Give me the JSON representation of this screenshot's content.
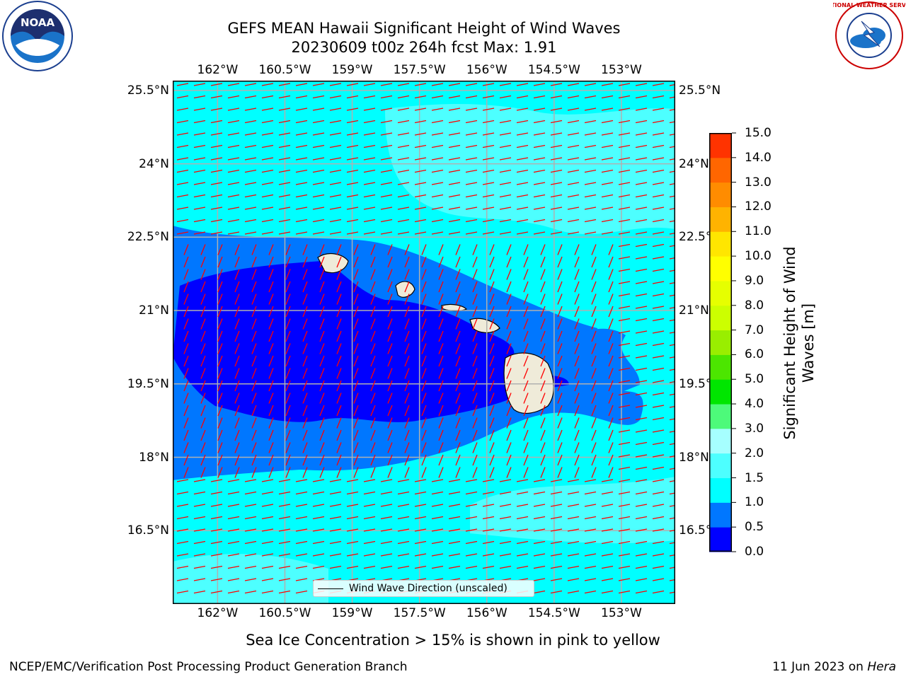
{
  "title": {
    "line1": "GEFS MEAN Hawaii Significant Height of Wind Waves",
    "line2": "20230609 t00z 264h fcst   Max: 1.91"
  },
  "map": {
    "lon_range": [
      -163.0,
      -151.8
    ],
    "lat_range": [
      15.0,
      25.7
    ],
    "lon_ticks": [
      "162°W",
      "160.5°W",
      "159°W",
      "157.5°W",
      "156°W",
      "154.5°W",
      "153°W"
    ],
    "lon_tick_values": [
      -162.0,
      -160.5,
      -159.0,
      -157.5,
      -156.0,
      -154.5,
      -153.0
    ],
    "lat_ticks": [
      "25.5°N",
      "24°N",
      "22.5°N",
      "21°N",
      "19.5°N",
      "18°N",
      "16.5°N"
    ],
    "lat_tick_values": [
      25.5,
      24.0,
      22.5,
      21.0,
      19.5,
      18.0,
      16.5
    ],
    "grid": true,
    "ocean_color": "#00ffff",
    "land_color": "#efebd9",
    "arrow_color": "#ff0000"
  },
  "legend": {
    "label": "Wind Wave Direction (unscaled)",
    "placement": "lower-center"
  },
  "colorbar": {
    "title": "Significant Height of Wind Waves [m]",
    "ticks": [
      "0.0",
      "0.5",
      "1.0",
      "1.5",
      "2.0",
      "3.0",
      "4.0",
      "5.0",
      "6.0",
      "7.0",
      "8.0",
      "9.0",
      "10.0",
      "11.0",
      "12.0",
      "13.0",
      "14.0",
      "15.0"
    ],
    "colors": [
      "#0000ff",
      "#0077ff",
      "#00ffff",
      "#4dffff",
      "#a6ffff",
      "#4dfa7a",
      "#00e600",
      "#4ce600",
      "#99ee00",
      "#ccff00",
      "#e6ff00",
      "#ffff00",
      "#ffe600",
      "#ffb300",
      "#ff8c00",
      "#ff6600",
      "#ff3300",
      "#ff0000"
    ]
  },
  "footnote": "Sea Ice Concentration > 15% is shown in pink to yellow",
  "credits": {
    "left": "NCEP/EMC/Verification Post Processing Product Generation Branch",
    "right_prefix": "11 Jun 2023 on ",
    "right_host": "Hera"
  },
  "logos": {
    "noaa_text": "NOAA",
    "nws_text": "NATIONAL WEATHER SERVICE"
  }
}
